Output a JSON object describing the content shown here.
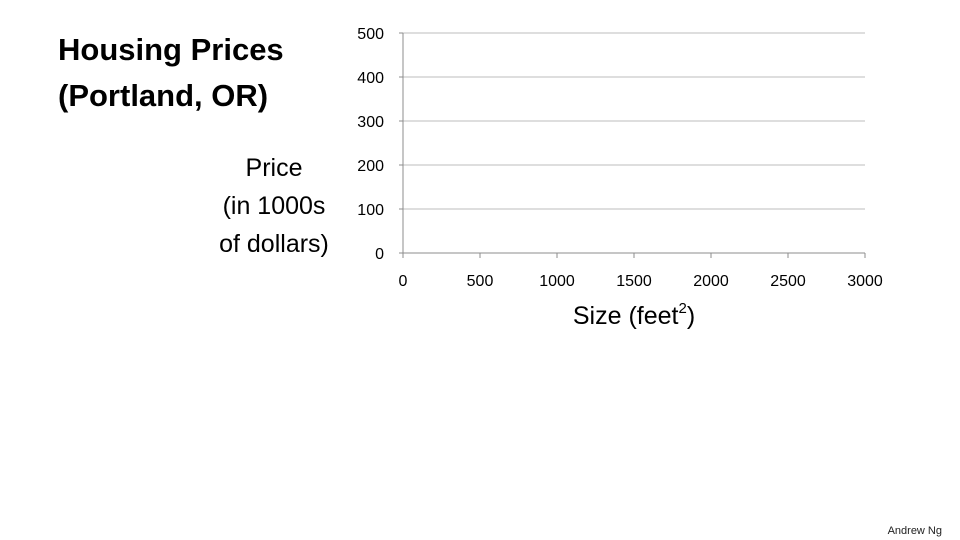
{
  "slide": {
    "title_lines": [
      "Housing Prices",
      "(Portland, OR)"
    ],
    "author": "Andrew Ng"
  },
  "chart_data": {
    "type": "scatter",
    "title": "Housing Prices (Portland, OR)",
    "ylabel_lines": [
      "Price",
      "(in 1000s",
      "of dollars)"
    ],
    "xlabel": {
      "text": "Size (feet",
      "superscript": "2",
      "suffix": ")"
    },
    "xlim": [
      0,
      3000
    ],
    "ylim": [
      0,
      500
    ],
    "x_ticks": [
      0,
      500,
      1000,
      1500,
      2000,
      2500,
      3000
    ],
    "y_ticks": [
      0,
      100,
      200,
      300,
      400,
      500
    ],
    "grid": "horizontal",
    "series": [
      {
        "x": [],
        "y": []
      }
    ],
    "colors": {
      "grid": "#bdbdbd",
      "axis": "#8c8c8c",
      "text": "#000000"
    }
  }
}
